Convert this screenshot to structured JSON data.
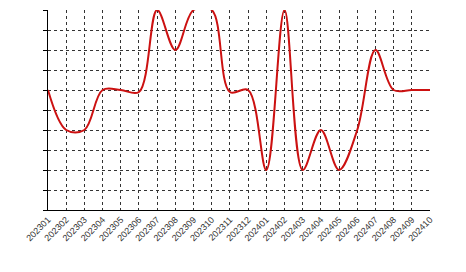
{
  "chart_data": {
    "type": "line",
    "categories": [
      "202301",
      "202302",
      "202303",
      "202304",
      "202305",
      "202306",
      "202307",
      "202308",
      "202309",
      "202310",
      "202311",
      "202312",
      "202401",
      "202402",
      "202403",
      "202404",
      "202405",
      "202406",
      "202407",
      "202408",
      "202409",
      "202410"
    ],
    "values": [
      6,
      4,
      4,
      6,
      6,
      5.9,
      10,
      8,
      10,
      10,
      5.9,
      6,
      2,
      10,
      2,
      4,
      2,
      4,
      8,
      6,
      6,
      6
    ],
    "color": "#cc1111",
    "ylim": [
      0,
      10
    ],
    "yticks": [
      0,
      1,
      2,
      3,
      4,
      5,
      6,
      7,
      8,
      9,
      10
    ],
    "grid": true,
    "tick_labels": "x",
    "line_style": "solid"
  }
}
